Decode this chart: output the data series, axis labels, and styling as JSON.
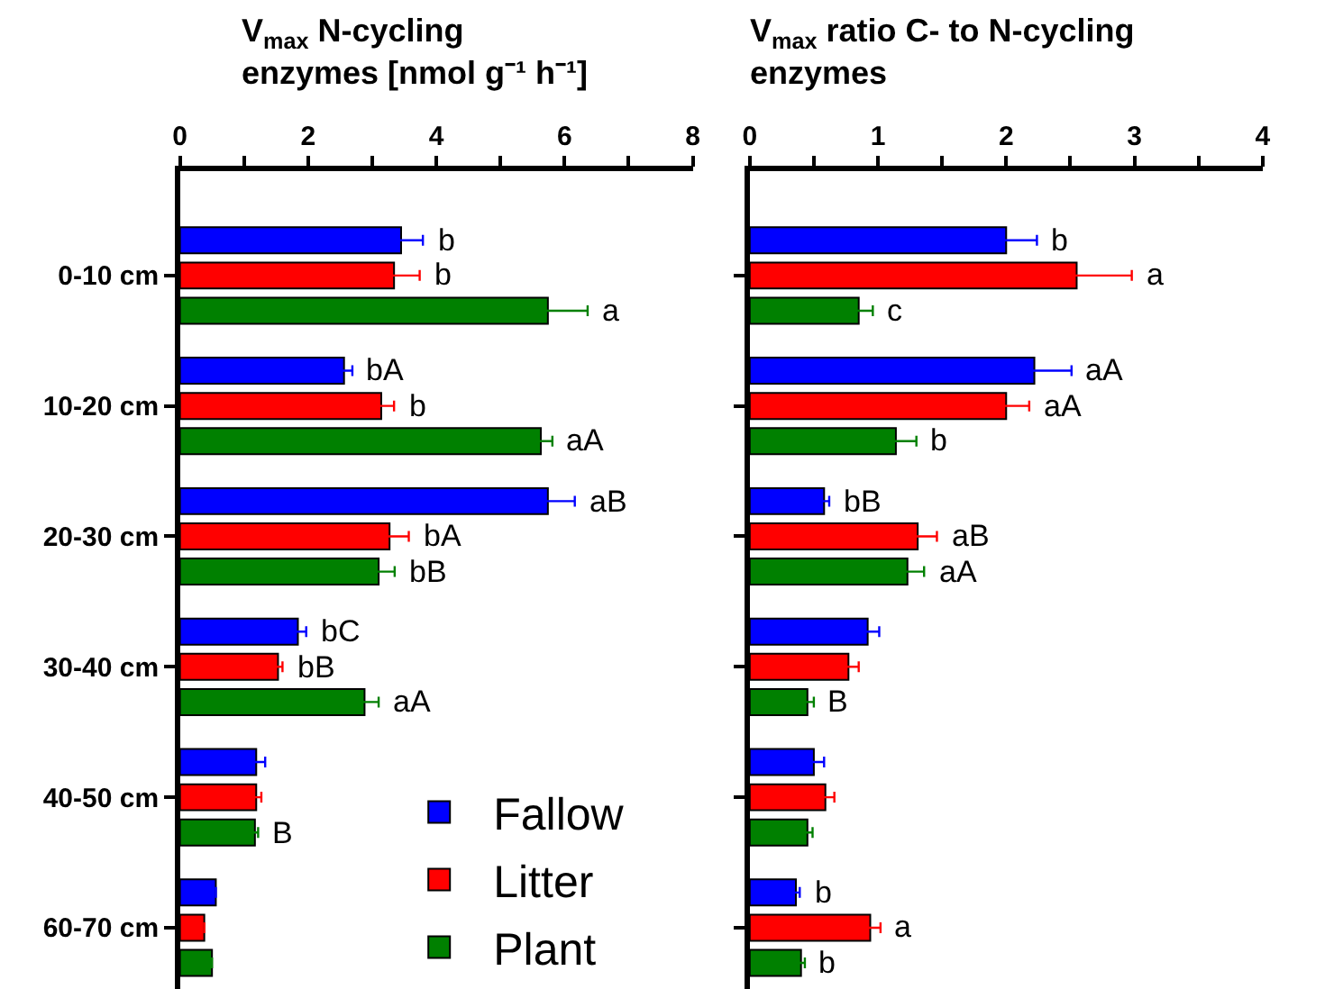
{
  "chart_data": [
    {
      "type": "bar",
      "orientation": "horizontal",
      "title": "V$_{max}$ N-cycling enzymes [nmol g⁻¹ h⁻¹]",
      "categories": [
        "0-10 cm",
        "10-20 cm",
        "20-30 cm",
        "30-40 cm",
        "40-50 cm",
        "60-70 cm"
      ],
      "series": [
        {
          "name": "Fallow",
          "color": "#0000ff",
          "values": [
            3.45,
            2.56,
            5.74,
            1.84,
            1.19,
            0.56
          ],
          "errors": [
            0.34,
            0.13,
            0.42,
            0.13,
            0.14,
            null
          ],
          "value_labels": [
            "b",
            "bA",
            "aB",
            "bC",
            null,
            null
          ]
        },
        {
          "name": "Litter",
          "color": "#ff0000",
          "values": [
            3.34,
            3.14,
            3.27,
            1.53,
            1.19,
            0.38
          ],
          "errors": [
            0.4,
            0.2,
            0.3,
            0.07,
            0.08,
            null
          ],
          "value_labels": [
            "b",
            "b",
            "bA",
            "bB",
            null,
            null
          ]
        },
        {
          "name": "Plant",
          "color": "#008000",
          "values": [
            5.74,
            5.63,
            3.1,
            2.88,
            1.17,
            0.5
          ],
          "errors": [
            0.62,
            0.18,
            0.25,
            0.22,
            0.05,
            null
          ],
          "value_labels": [
            "a",
            "aA",
            "bB",
            "aA",
            "B",
            null
          ]
        }
      ],
      "xlim": [
        0,
        8
      ],
      "xticks": [
        0,
        {
          "value": 1,
          "label": null
        },
        2,
        {
          "value": 3,
          "label": null
        },
        4,
        {
          "value": 5,
          "label": null
        },
        6,
        {
          "value": 7,
          "label": null
        },
        8
      ],
      "legend": "bottom right"
    },
    {
      "type": "bar",
      "orientation": "horizontal",
      "title": "V$_{max}$ ratio C- to N-cycling enzymes",
      "categories": [
        null,
        null,
        null,
        null,
        null,
        null
      ],
      "series": [
        {
          "color": "#0000ff",
          "values": [
            2.0,
            2.22,
            0.58,
            0.92,
            0.5,
            0.36
          ],
          "errors": [
            0.24,
            0.29,
            0.04,
            0.09,
            0.08,
            0.03
          ],
          "value_labels": [
            "b",
            "aA",
            "bB",
            null,
            null,
            "b"
          ]
        },
        {
          "color": "#ff0000",
          "values": [
            2.55,
            2.0,
            1.31,
            0.77,
            0.59,
            0.94
          ],
          "errors": [
            0.43,
            0.18,
            0.15,
            0.08,
            0.07,
            0.08
          ],
          "value_labels": [
            "a",
            "aA",
            "aB",
            null,
            null,
            "a"
          ]
        },
        {
          "color": "#008000",
          "values": [
            0.85,
            1.14,
            1.23,
            0.45,
            0.45,
            0.4
          ],
          "errors": [
            0.11,
            0.16,
            0.13,
            0.05,
            0.04,
            0.03
          ],
          "value_labels": [
            "c",
            "b",
            "aA",
            "B",
            null,
            "b"
          ]
        }
      ],
      "xlim": [
        0,
        4
      ],
      "xticks": [
        0,
        {
          "value": 0.5,
          "label": null
        },
        1,
        {
          "value": 1.5,
          "label": null
        },
        2,
        {
          "value": 2.5,
          "label": null
        },
        3,
        {
          "value": 3.5,
          "label": null
        },
        4
      ],
      "tick_labels": "x"
    }
  ]
}
